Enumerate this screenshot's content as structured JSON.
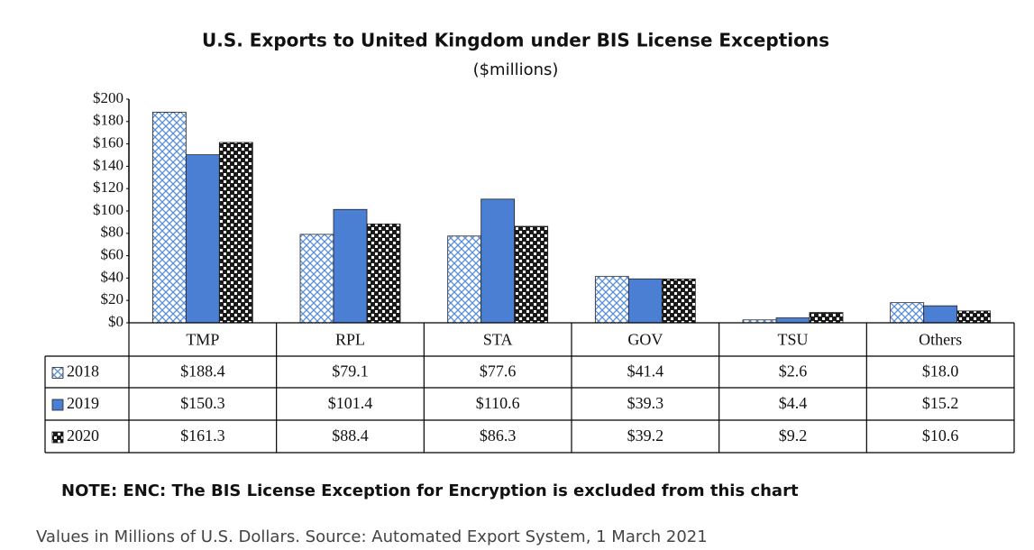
{
  "chart_data": {
    "type": "bar",
    "title": "U.S. Exports to United Kingdom under BIS License Exceptions",
    "subtitle": "($millions)",
    "categories": [
      "TMP",
      "RPL",
      "STA",
      "GOV",
      "TSU",
      "Others"
    ],
    "series": [
      {
        "name": "2018",
        "color": "#5b8fd6",
        "values": [
          188.4,
          79.1,
          77.6,
          41.4,
          2.6,
          18.0
        ],
        "value_labels": [
          "$188.4",
          "$79.1",
          "$77.6",
          "$41.4",
          "$2.6",
          "$18.0"
        ]
      },
      {
        "name": "2019",
        "color": "#4a7fd4",
        "values": [
          150.3,
          101.4,
          110.6,
          39.3,
          4.4,
          15.2
        ],
        "value_labels": [
          "$150.3",
          "$101.4",
          "$110.6",
          "$39.3",
          "$4.4",
          "$15.2"
        ]
      },
      {
        "name": "2020",
        "color": "#1a1a1a",
        "values": [
          161.3,
          88.4,
          86.3,
          39.2,
          9.2,
          10.6
        ],
        "value_labels": [
          "$161.3",
          "$88.4",
          "$86.3",
          "$39.2",
          "$9.2",
          "$10.6"
        ]
      }
    ],
    "ylim": [
      0,
      200
    ],
    "yticks": [
      {
        "value": 0,
        "label": "$0"
      },
      {
        "value": 20,
        "label": "$20"
      },
      {
        "value": 40,
        "label": "$40"
      },
      {
        "value": 60,
        "label": "$60"
      },
      {
        "value": 80,
        "label": "$80"
      },
      {
        "value": 100,
        "label": "$100"
      },
      {
        "value": 120,
        "label": "$120"
      },
      {
        "value": 140,
        "label": "$140"
      },
      {
        "value": 160,
        "label": "$160"
      },
      {
        "value": 180,
        "label": "$180"
      },
      {
        "value": 200,
        "label": "$200"
      }
    ],
    "note": "NOTE: ENC: The BIS License Exception for Encryption is excluded from this chart",
    "source": "Values in Millions of U.S. Dollars. Source: Automated Export System, 1 March 2021"
  }
}
